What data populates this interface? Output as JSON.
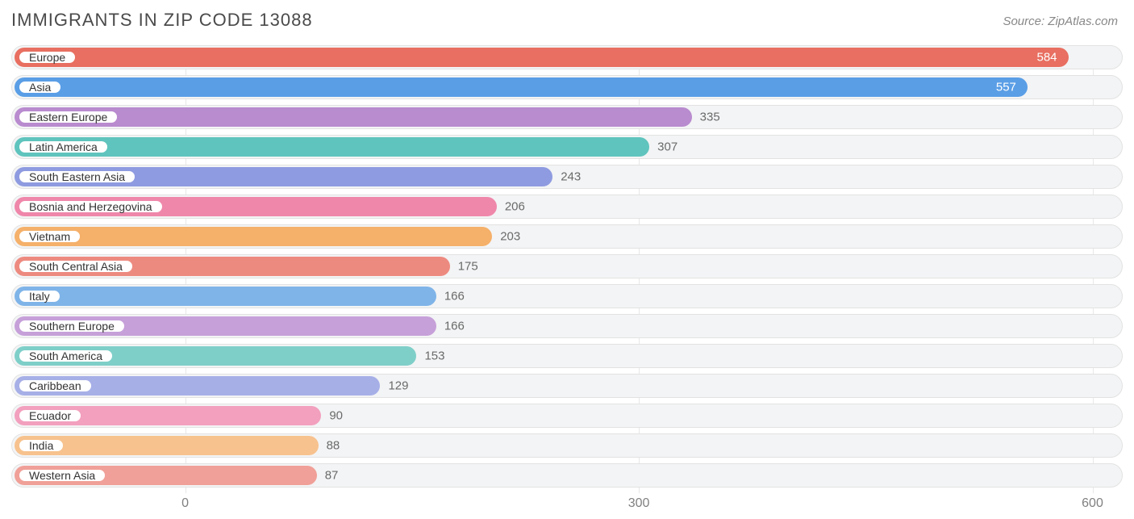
{
  "title": "IMMIGRANTS IN ZIP CODE 13088",
  "source": "Source: ZipAtlas.com",
  "chart": {
    "type": "bar-horizontal",
    "track_bg": "#f3f4f5",
    "track_border": "#e2e2e2",
    "grid_color": "#e8e8e8",
    "title_color": "#4a4a4a",
    "source_color": "#888888",
    "label_fontsize": 14,
    "value_fontsize": 15,
    "axis_fontsize": 16,
    "axis_color": "#808080",
    "value_color_dark": "#6a6a6a",
    "value_color_light": "#ffffff",
    "x_domain_min": -115,
    "x_domain_max": 620,
    "x_ticks": [
      0,
      300,
      600
    ],
    "bars": [
      {
        "label": "Europe",
        "value": 584,
        "color": "#e86f61",
        "value_inside": true
      },
      {
        "label": "Asia",
        "value": 557,
        "color": "#5a9ee6",
        "value_inside": true
      },
      {
        "label": "Eastern Europe",
        "value": 335,
        "color": "#b98bcf",
        "value_inside": false
      },
      {
        "label": "Latin America",
        "value": 307,
        "color": "#5fc4bd",
        "value_inside": false
      },
      {
        "label": "South Eastern Asia",
        "value": 243,
        "color": "#8f9be0",
        "value_inside": false
      },
      {
        "label": "Bosnia and Herzegovina",
        "value": 206,
        "color": "#ef87ab",
        "value_inside": false
      },
      {
        "label": "Vietnam",
        "value": 203,
        "color": "#f5b06a",
        "value_inside": false
      },
      {
        "label": "South Central Asia",
        "value": 175,
        "color": "#ed8a80",
        "value_inside": false
      },
      {
        "label": "Italy",
        "value": 166,
        "color": "#7fb4e8",
        "value_inside": false
      },
      {
        "label": "Southern Europe",
        "value": 166,
        "color": "#c6a0d9",
        "value_inside": false
      },
      {
        "label": "South America",
        "value": 153,
        "color": "#7fcfc9",
        "value_inside": false
      },
      {
        "label": "Caribbean",
        "value": 129,
        "color": "#a7afe7",
        "value_inside": false
      },
      {
        "label": "Ecuador",
        "value": 90,
        "color": "#f2a0bd",
        "value_inside": false
      },
      {
        "label": "India",
        "value": 88,
        "color": "#f7c28e",
        "value_inside": false
      },
      {
        "label": "Western Asia",
        "value": 87,
        "color": "#f0a098",
        "value_inside": false
      }
    ]
  }
}
